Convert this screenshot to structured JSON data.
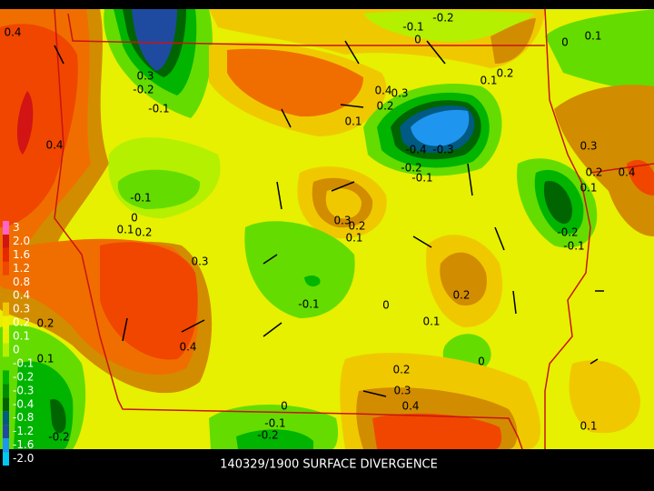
{
  "title": "140329/1900 SURFACE DIVERGENCE",
  "colorbar": {
    "labels": [
      "3",
      "2.0",
      "1.6",
      "1.2",
      "0.8",
      "0.4",
      "0.3",
      "0.2",
      "0.1",
      "0",
      "-0.1",
      "-0.2",
      "-0.3",
      "-0.4",
      "-0.8",
      "-1.2",
      "-1.6",
      "-2.0"
    ],
    "colors": [
      "#ff64c8",
      "#d21414",
      "#e62800",
      "#f04600",
      "#f06e00",
      "#d28c00",
      "#f0c800",
      "#f0f000",
      "#e6f000",
      "#b4f000",
      "#64dc00",
      "#00b400",
      "#008c00",
      "#006400",
      "#005a82",
      "#1e4ba0",
      "#1e96f0",
      "#00c8f0",
      "#8c3cc8"
    ]
  },
  "contour_labels": [
    "0.4",
    "-0.1",
    "-0.2",
    "0",
    "0.1",
    "0",
    "0.3",
    "-0.2",
    "-0.1",
    "0.4",
    "0.3",
    "0.2",
    "0.1",
    "0.2",
    "0.1",
    "0.4",
    "-0.4",
    "-0.3",
    "-0.2",
    "-0.1",
    "0.3",
    "0.2",
    "0.4",
    "0.1",
    "-0.1",
    "0",
    "0.1",
    "0.2",
    "0.3",
    "0.2",
    "0.1",
    "-0.2",
    "-0.1",
    "0.3",
    "0.2",
    "-0.1",
    "0",
    "0.1",
    "0.4",
    "0.2",
    "0.1",
    "0",
    "0.2",
    "0.3",
    "0.4",
    "0",
    "-0.1",
    "-0.2",
    "0.1",
    "-0.2"
  ]
}
